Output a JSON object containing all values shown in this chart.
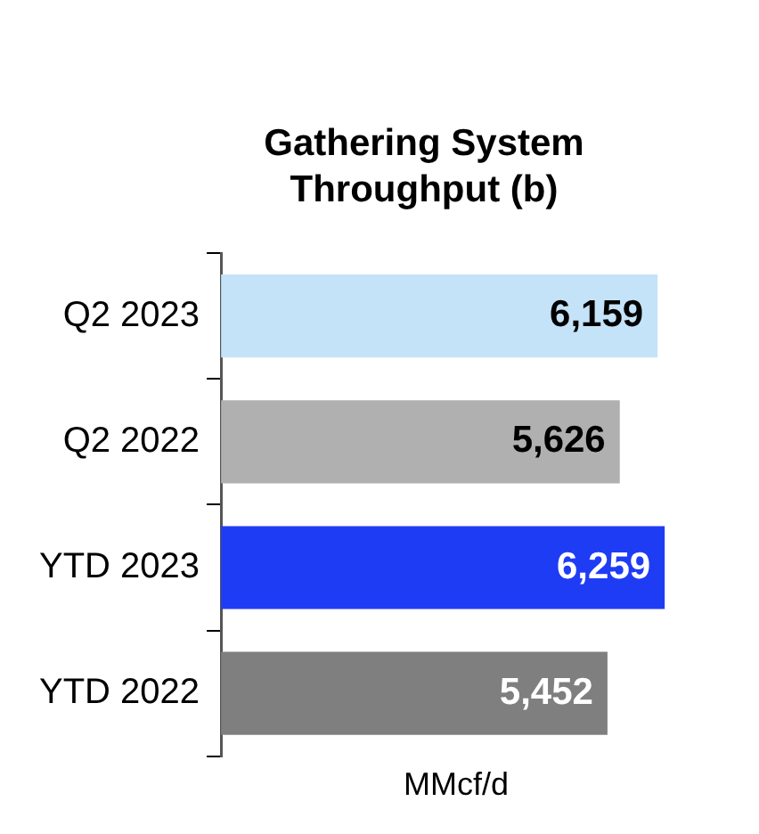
{
  "chart_data": {
    "type": "bar",
    "orientation": "horizontal",
    "title": "Gathering System Throughput (b)",
    "xlabel": "MMcf/d",
    "categories": [
      "Q2 2023",
      "Q2 2022",
      "YTD 2023",
      "YTD 2022"
    ],
    "values": [
      6159,
      5626,
      6259,
      5452
    ],
    "colors": [
      "#c5e3f8",
      "#b0b0b0",
      "#1f3cf5",
      "#7f7f7f"
    ],
    "value_labels": [
      "6,159",
      "5,626",
      "6,259",
      "5,452"
    ],
    "tick_labels": "y",
    "grid": false,
    "legend": false
  }
}
